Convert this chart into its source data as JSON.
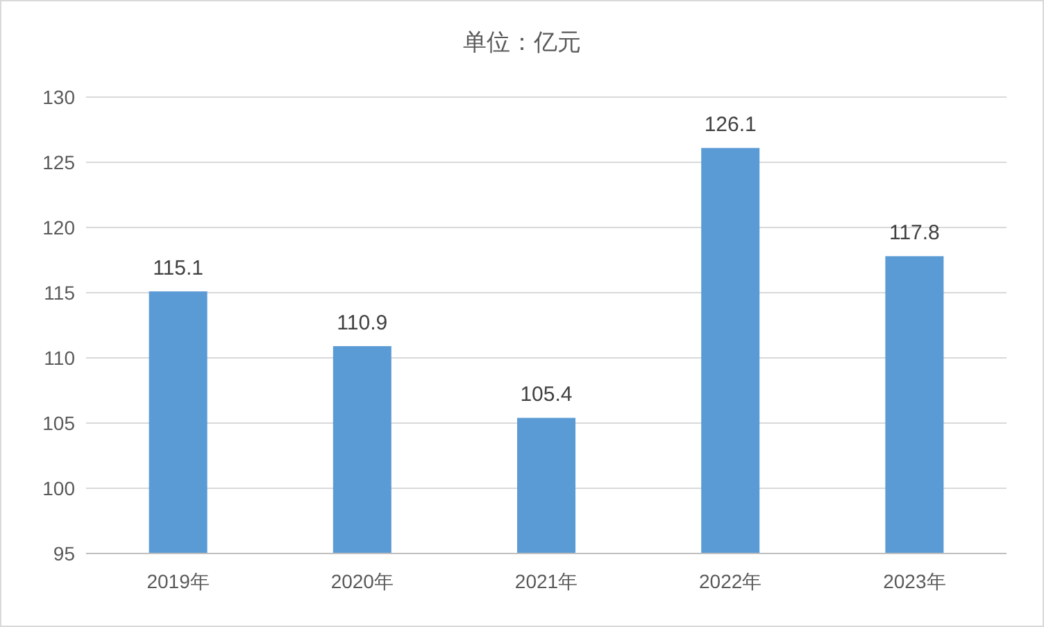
{
  "chart_data": {
    "type": "bar",
    "title": "单位：亿元",
    "categories": [
      "2019年",
      "2020年",
      "2021年",
      "2022年",
      "2023年"
    ],
    "values": [
      115.1,
      110.9,
      105.4,
      126.1,
      117.8
    ],
    "color": "#5b9bd5",
    "ylim": [
      95,
      130
    ],
    "yticks": [
      95,
      100,
      105,
      110,
      115,
      120,
      125,
      130
    ],
    "grid": "y",
    "data_labels": true
  }
}
